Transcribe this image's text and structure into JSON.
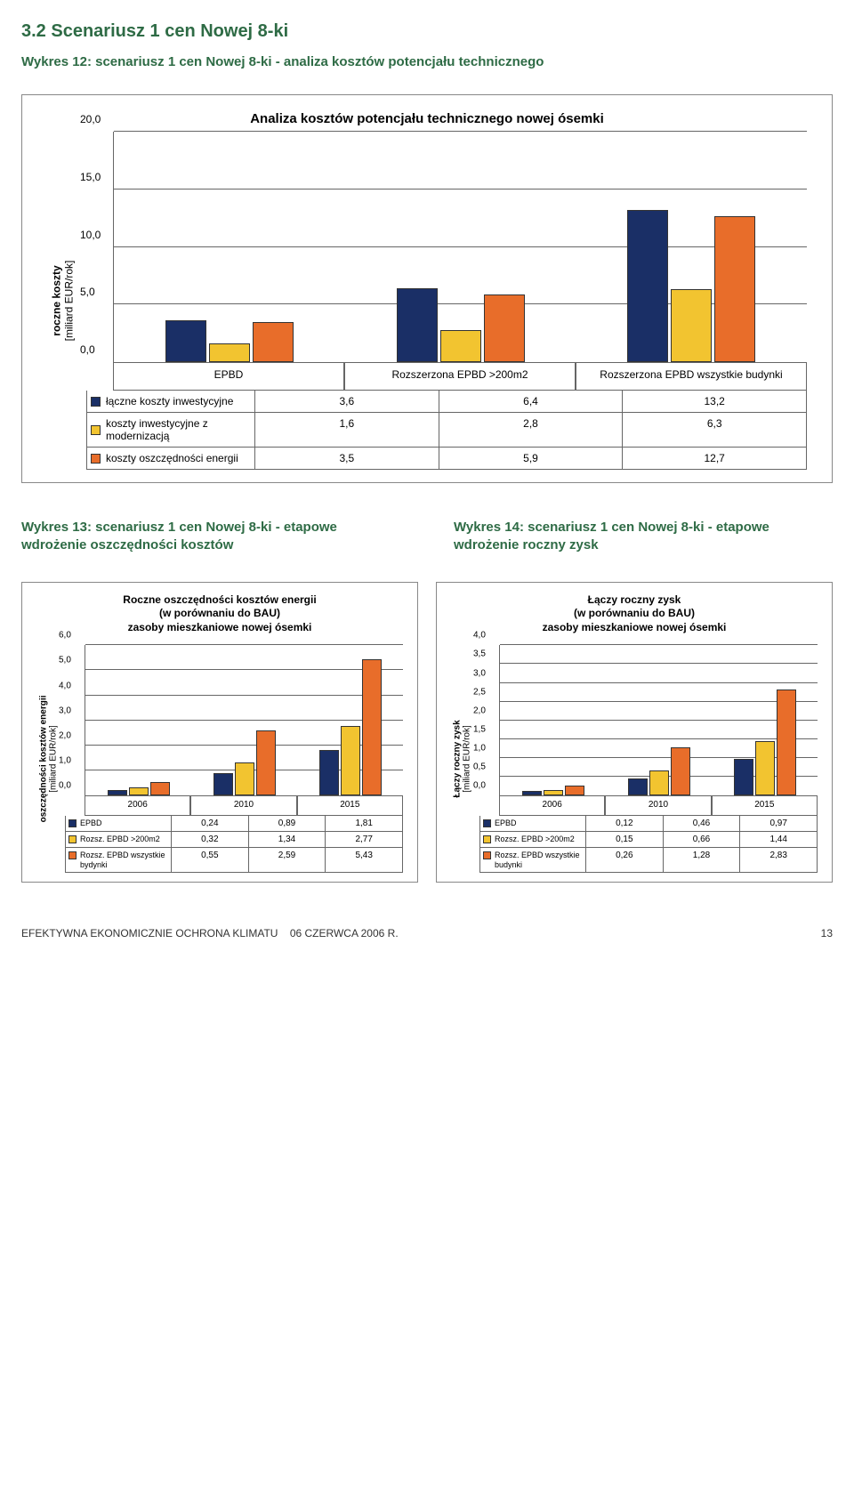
{
  "section_title_color": "#2e6b45",
  "caption_color": "#2e6b45",
  "series_colors": [
    "#1a2f66",
    "#f2c430",
    "#e86d2a"
  ],
  "section_title": "3.2 Scenariusz 1 cen Nowej 8-ki",
  "fig12_caption": "Wykres 12: scenariusz 1 cen Nowej 8-ki - analiza kosztów potencjału technicznego",
  "chart12": {
    "title": "Analiza kosztów potencjału technicznego nowej ósemki",
    "title_fontsize": 15,
    "ylabel_line1": "roczne koszty",
    "ylabel_line2": "[miliard EUR/rok]",
    "ymax": 20,
    "yticks": [
      0,
      5,
      10,
      15,
      20
    ],
    "ytick_labels": [
      "0,0",
      "5,0",
      "10,0",
      "15,0",
      "20,0"
    ],
    "categories": [
      "EPBD",
      "Rozszerzona EPBD >200m2",
      "Rozszerzona EPBD wszystkie budynki"
    ],
    "series": [
      {
        "label": "łączne koszty inwestycyjne",
        "values": [
          3.6,
          6.4,
          13.2
        ],
        "value_labels": [
          "3,6",
          "6,4",
          "13,2"
        ]
      },
      {
        "label": "koszty inwestycyjne z modernizacją",
        "values": [
          1.6,
          2.8,
          6.3
        ],
        "value_labels": [
          "1,6",
          "2,8",
          "6,3"
        ]
      },
      {
        "label": "koszty oszczędności energii",
        "values": [
          3.5,
          5.9,
          12.7
        ],
        "value_labels": [
          "3,5",
          "5,9",
          "12,7"
        ]
      }
    ]
  },
  "fig13_caption": "Wykres 13: scenariusz 1 cen Nowej 8-ki - etapowe wdrożenie oszczędności kosztów",
  "fig14_caption": "Wykres 14: scenariusz 1 cen Nowej 8-ki - etapowe wdrożenie roczny zysk",
  "chart13": {
    "title_line1": "Roczne oszczędności kosztów energii",
    "title_line2": "(w porównaniu do BAU)",
    "title_line3": "zasoby mieszkaniowe nowej ósemki",
    "ylabel_line1": "oszczędności kosztów energii",
    "ylabel_line2": "[miliard EUR/rok]",
    "ymax": 6,
    "yticks": [
      0,
      1,
      2,
      3,
      4,
      5,
      6
    ],
    "ytick_labels": [
      "0,0",
      "1,0",
      "2,0",
      "3,0",
      "4,0",
      "5,0",
      "6,0"
    ],
    "categories": [
      "2006",
      "2010",
      "2015"
    ],
    "series": [
      {
        "label": "EPBD",
        "values": [
          0.24,
          0.89,
          1.81
        ],
        "value_labels": [
          "0,24",
          "0,89",
          "1,81"
        ]
      },
      {
        "label": "Rozsz. EPBD >200m2",
        "values": [
          0.32,
          1.34,
          2.77
        ],
        "value_labels": [
          "0,32",
          "1,34",
          "2,77"
        ]
      },
      {
        "label": "Rozsz. EPBD wszystkie bydynki",
        "values": [
          0.55,
          2.59,
          5.43
        ],
        "value_labels": [
          "0,55",
          "2,59",
          "5,43"
        ]
      }
    ]
  },
  "chart14": {
    "title_line1": "Łączy roczny zysk",
    "title_line2": "(w porównaniu do BAU)",
    "title_line3": "zasoby mieszkaniowe nowej ósemki",
    "ylabel_line1": "Łączy roczny zysk",
    "ylabel_line2": "[miliard EUR/rok]",
    "ymax": 4,
    "yticks": [
      0,
      0.5,
      1,
      1.5,
      2,
      2.5,
      3,
      3.5,
      4
    ],
    "ytick_labels": [
      "0,0",
      "0,5",
      "1,0",
      "1,5",
      "2,0",
      "2,5",
      "3,0",
      "3,5",
      "4,0"
    ],
    "categories": [
      "2006",
      "2010",
      "2015"
    ],
    "series": [
      {
        "label": "EPBD",
        "values": [
          0.12,
          0.46,
          0.97
        ],
        "value_labels": [
          "0,12",
          "0,46",
          "0,97"
        ]
      },
      {
        "label": "Rozsz. EPBD >200m2",
        "values": [
          0.15,
          0.66,
          1.44
        ],
        "value_labels": [
          "0,15",
          "0,66",
          "1,44"
        ]
      },
      {
        "label": "Rozsz. EPBD wszystkie budynki",
        "values": [
          0.26,
          1.28,
          2.83
        ],
        "value_labels": [
          "0,26",
          "1,28",
          "2,83"
        ]
      }
    ]
  },
  "footer_left": "EFEKTYWNA EKONOMICZNIE OCHRONA KLIMATU",
  "footer_center": "06 CZERWCA 2006 R.",
  "footer_page": "13"
}
